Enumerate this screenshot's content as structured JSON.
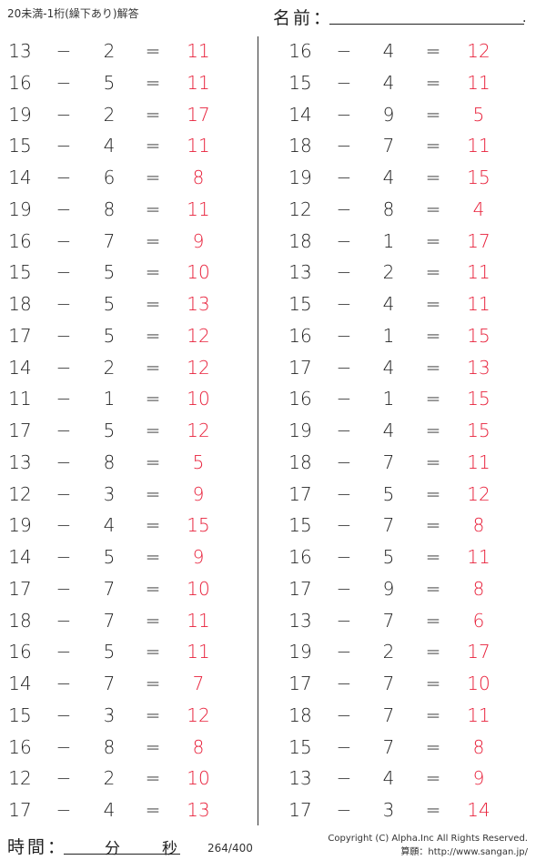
{
  "header": {
    "title": "20未満-1桁(繰下あり)解答",
    "name_label": "名前：",
    "name_end": "."
  },
  "operator": "−",
  "equals": "=",
  "colors": {
    "answer": "#e8203a",
    "text": "#222222"
  },
  "left_problems": [
    [
      "13",
      "2",
      "11"
    ],
    [
      "16",
      "5",
      "11"
    ],
    [
      "19",
      "2",
      "17"
    ],
    [
      "15",
      "4",
      "11"
    ],
    [
      "14",
      "6",
      "8"
    ],
    [
      "19",
      "8",
      "11"
    ],
    [
      "16",
      "7",
      "9"
    ],
    [
      "15",
      "5",
      "10"
    ],
    [
      "18",
      "5",
      "13"
    ],
    [
      "17",
      "5",
      "12"
    ],
    [
      "14",
      "2",
      "12"
    ],
    [
      "11",
      "1",
      "10"
    ],
    [
      "17",
      "5",
      "12"
    ],
    [
      "13",
      "8",
      "5"
    ],
    [
      "12",
      "3",
      "9"
    ],
    [
      "19",
      "4",
      "15"
    ],
    [
      "14",
      "5",
      "9"
    ],
    [
      "17",
      "7",
      "10"
    ],
    [
      "18",
      "7",
      "11"
    ],
    [
      "16",
      "5",
      "11"
    ],
    [
      "14",
      "7",
      "7"
    ],
    [
      "15",
      "3",
      "12"
    ],
    [
      "16",
      "8",
      "8"
    ],
    [
      "12",
      "2",
      "10"
    ],
    [
      "17",
      "4",
      "13"
    ]
  ],
  "right_problems": [
    [
      "16",
      "4",
      "12"
    ],
    [
      "15",
      "4",
      "11"
    ],
    [
      "14",
      "9",
      "5"
    ],
    [
      "18",
      "7",
      "11"
    ],
    [
      "19",
      "4",
      "15"
    ],
    [
      "12",
      "8",
      "4"
    ],
    [
      "18",
      "1",
      "17"
    ],
    [
      "13",
      "2",
      "11"
    ],
    [
      "15",
      "4",
      "11"
    ],
    [
      "16",
      "1",
      "15"
    ],
    [
      "17",
      "4",
      "13"
    ],
    [
      "16",
      "1",
      "15"
    ],
    [
      "19",
      "4",
      "15"
    ],
    [
      "18",
      "7",
      "11"
    ],
    [
      "17",
      "5",
      "12"
    ],
    [
      "15",
      "7",
      "8"
    ],
    [
      "16",
      "5",
      "11"
    ],
    [
      "17",
      "9",
      "8"
    ],
    [
      "13",
      "7",
      "6"
    ],
    [
      "19",
      "2",
      "17"
    ],
    [
      "17",
      "7",
      "10"
    ],
    [
      "18",
      "7",
      "11"
    ],
    [
      "15",
      "7",
      "8"
    ],
    [
      "13",
      "4",
      "9"
    ],
    [
      "17",
      "3",
      "14"
    ]
  ],
  "footer": {
    "time_label": "時間：",
    "minutes": "分",
    "seconds": "秒",
    "page": "264/400",
    "copyright": "Copyright (C) Alpha.Inc All Rights Reserved.",
    "site": "算願：http://www.sangan.jp/"
  }
}
